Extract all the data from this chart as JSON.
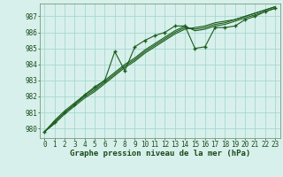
{
  "title": "Graphe pression niveau de la mer (hPa)",
  "x_labels": [
    "0",
    "1",
    "2",
    "3",
    "4",
    "5",
    "6",
    "7",
    "8",
    "9",
    "10",
    "11",
    "12",
    "13",
    "14",
    "15",
    "16",
    "17",
    "18",
    "19",
    "20",
    "21",
    "22",
    "23"
  ],
  "xlim": [
    -0.5,
    23.5
  ],
  "ylim": [
    979.4,
    987.8
  ],
  "yticks": [
    980,
    981,
    982,
    983,
    984,
    985,
    986,
    987
  ],
  "background_color": "#d8f0ec",
  "grid_color": "#a8d8d0",
  "line_color": "#1a5c1a",
  "marker_color": "#1a5c1a",
  "series_with_markers": [
    979.8,
    980.4,
    981.0,
    981.5,
    982.1,
    982.6,
    983.0,
    984.8,
    983.6,
    985.1,
    985.5,
    985.8,
    986.0,
    986.4,
    986.4,
    985.0,
    985.1,
    986.3,
    986.3,
    986.4,
    986.8,
    987.0,
    987.3,
    987.5
  ],
  "series_smooth1": [
    979.8,
    980.3,
    980.9,
    981.4,
    981.9,
    982.3,
    982.8,
    983.3,
    983.8,
    984.2,
    984.7,
    985.1,
    985.5,
    985.9,
    986.2,
    986.3,
    986.4,
    986.6,
    986.7,
    986.8,
    987.0,
    987.2,
    987.4,
    987.6
  ],
  "series_smooth2": [
    979.8,
    980.4,
    981.0,
    981.5,
    982.0,
    982.4,
    982.9,
    983.4,
    983.9,
    984.3,
    984.8,
    985.2,
    985.6,
    986.0,
    986.3,
    986.2,
    986.3,
    986.5,
    986.6,
    986.8,
    987.0,
    987.2,
    987.4,
    987.6
  ],
  "series_smooth3": [
    979.8,
    980.5,
    981.1,
    981.6,
    982.1,
    982.5,
    983.0,
    983.5,
    984.0,
    984.4,
    984.9,
    985.3,
    985.7,
    986.1,
    986.4,
    986.1,
    986.2,
    986.4,
    986.5,
    986.7,
    986.9,
    987.1,
    987.3,
    987.5
  ],
  "label_fontsize": 5.5,
  "title_fontsize": 6.5
}
